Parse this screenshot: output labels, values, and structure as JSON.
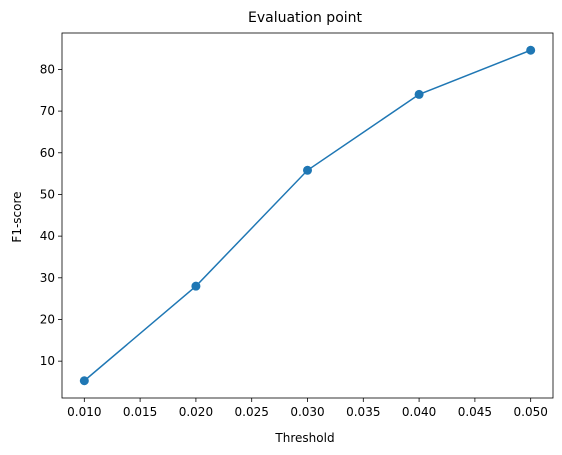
{
  "chart_data": {
    "type": "line",
    "title": "Evaluation point",
    "xlabel": "Threshold",
    "ylabel": "F1-score",
    "x": [
      0.01,
      0.02,
      0.03,
      0.04,
      0.05
    ],
    "series": [
      {
        "values": [
          5.3,
          28.0,
          55.8,
          74.0,
          84.6
        ]
      }
    ],
    "xticks": [
      0.01,
      0.015,
      0.02,
      0.025,
      0.03,
      0.035,
      0.04,
      0.045,
      0.05
    ],
    "xtick_labels": [
      "0.010",
      "0.015",
      "0.020",
      "0.025",
      "0.030",
      "0.035",
      "0.040",
      "0.045",
      "0.050"
    ],
    "yticks": [
      10,
      20,
      30,
      40,
      50,
      60,
      70,
      80
    ],
    "ytick_labels": [
      "10",
      "20",
      "30",
      "40",
      "50",
      "60",
      "70",
      "80"
    ],
    "xlim": [
      0.008,
      0.052
    ],
    "ylim": [
      1.16,
      88.74
    ],
    "grid": false,
    "line_color": "#1f77b4",
    "marker": "circle"
  }
}
